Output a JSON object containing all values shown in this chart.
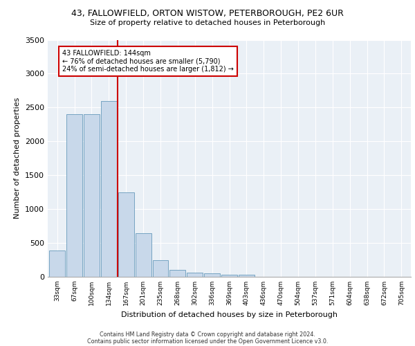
{
  "title1": "43, FALLOWFIELD, ORTON WISTOW, PETERBOROUGH, PE2 6UR",
  "title2": "Size of property relative to detached houses in Peterborough",
  "xlabel": "Distribution of detached houses by size in Peterborough",
  "ylabel": "Number of detached properties",
  "categories": [
    "33sqm",
    "67sqm",
    "100sqm",
    "134sqm",
    "167sqm",
    "201sqm",
    "235sqm",
    "268sqm",
    "302sqm",
    "336sqm",
    "369sqm",
    "403sqm",
    "436sqm",
    "470sqm",
    "504sqm",
    "537sqm",
    "571sqm",
    "604sqm",
    "638sqm",
    "672sqm",
    "705sqm"
  ],
  "values": [
    390,
    2400,
    2400,
    2600,
    1250,
    640,
    250,
    100,
    60,
    50,
    30,
    30,
    5,
    0,
    0,
    0,
    0,
    0,
    0,
    0,
    0
  ],
  "bar_color": "#c8d8ea",
  "bar_edge_color": "#6699bb",
  "highlight_label": "43 FALLOWFIELD: 144sqm",
  "annotation_line1": "← 76% of detached houses are smaller (5,790)",
  "annotation_line2": "24% of semi-detached houses are larger (1,812) →",
  "annotation_box_color": "#ffffff",
  "annotation_box_edge": "#cc0000",
  "vline_color": "#cc0000",
  "vline_x": 3.5,
  "ylim": [
    0,
    3500
  ],
  "yticks": [
    0,
    500,
    1000,
    1500,
    2000,
    2500,
    3000,
    3500
  ],
  "background_color": "#eaf0f6",
  "footer1": "Contains HM Land Registry data © Crown copyright and database right 2024.",
  "footer2": "Contains public sector information licensed under the Open Government Licence v3.0."
}
